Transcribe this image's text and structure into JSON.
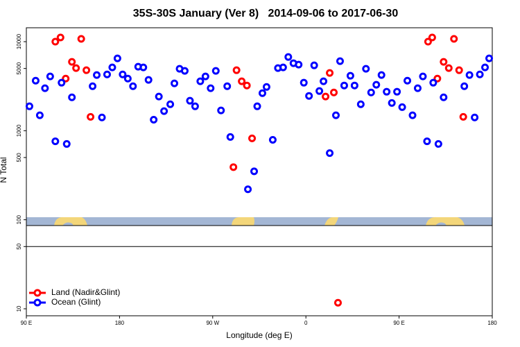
{
  "chart_data": {
    "type": "scatter",
    "title": "35S-30S January (Ver 8)   2014-09-06 to 2017-06-30",
    "x_label": "Longitude (deg E)",
    "y_label": "N Total",
    "log_y": true,
    "xlim": [
      90,
      540
    ],
    "ylim": [
      8.35,
      14330
    ],
    "xticks": [
      {
        "value": 90,
        "label": "90 E"
      },
      180,
      {
        "value": 270,
        "label": "90 W"
      },
      {
        "value": 360,
        "label": "0"
      },
      {
        "value": 450,
        "label": "90 E"
      },
      {
        "value": 540,
        "label": "180"
      }
    ],
    "yticks": [
      10,
      50,
      100,
      500,
      1000,
      5000,
      10000
    ],
    "reference_line": 50,
    "legend": "bottom-left",
    "series": [
      {
        "name": "Land (Nadir&Glint)",
        "color": "#ff0000",
        "x": [
          118,
          123,
          128,
          134,
          138,
          143,
          148,
          152,
          290,
          293,
          298,
          303,
          308,
          379,
          383,
          387,
          391,
          478,
          482,
          487,
          493,
          498,
          503,
          508,
          512
        ],
        "values": [
          10000,
          11140,
          3850,
          5930,
          5050,
          10750,
          4780,
          1430,
          390,
          4780,
          3590,
          3220,
          820,
          2420,
          4450,
          2690,
          11.7,
          10000,
          11140,
          3850,
          5930,
          5050,
          10750,
          4780,
          1430
        ]
      },
      {
        "name": "Ocean (Glint)",
        "color": "#0000ff",
        "x": [
          93,
          99,
          103,
          108,
          113,
          118,
          124,
          129,
          134,
          154,
          158,
          163,
          168,
          173,
          178,
          183,
          188,
          193,
          198,
          203,
          208,
          213,
          218,
          223,
          229,
          233,
          238,
          243,
          248,
          253,
          258,
          263,
          268,
          273,
          278,
          284,
          287,
          304,
          310,
          313,
          318,
          322,
          328,
          333,
          338,
          343,
          348,
          353,
          358,
          363,
          368,
          373,
          377,
          383,
          389,
          393,
          397,
          403,
          407,
          413,
          418,
          423,
          428,
          433,
          438,
          443,
          448,
          453,
          458,
          463,
          468,
          473,
          477,
          483,
          488,
          493,
          513,
          518,
          523,
          528,
          533,
          537
        ],
        "values": [
          1880,
          3650,
          1490,
          3000,
          4070,
          760,
          3460,
          710,
          2370,
          3160,
          4220,
          1410,
          4290,
          5140,
          6490,
          4290,
          3850,
          3160,
          5230,
          5140,
          3720,
          1330,
          2420,
          1660,
          1980,
          3400,
          4960,
          4700,
          2170,
          1880,
          3590,
          4070,
          3000,
          4700,
          1690,
          3160,
          850,
          220,
          350,
          1880,
          2640,
          3100,
          790,
          5050,
          5140,
          6730,
          5730,
          5520,
          3460,
          2460,
          5420,
          2790,
          3590,
          560,
          1490,
          6040,
          3220,
          4140,
          3220,
          1980,
          4960,
          2690,
          3280,
          4220,
          2740,
          2050,
          2740,
          1840,
          3650,
          1490,
          3000,
          4070,
          760,
          3460,
          710,
          2370,
          3160,
          4220,
          1410,
          4290,
          5140,
          6490
        ]
      }
    ]
  }
}
